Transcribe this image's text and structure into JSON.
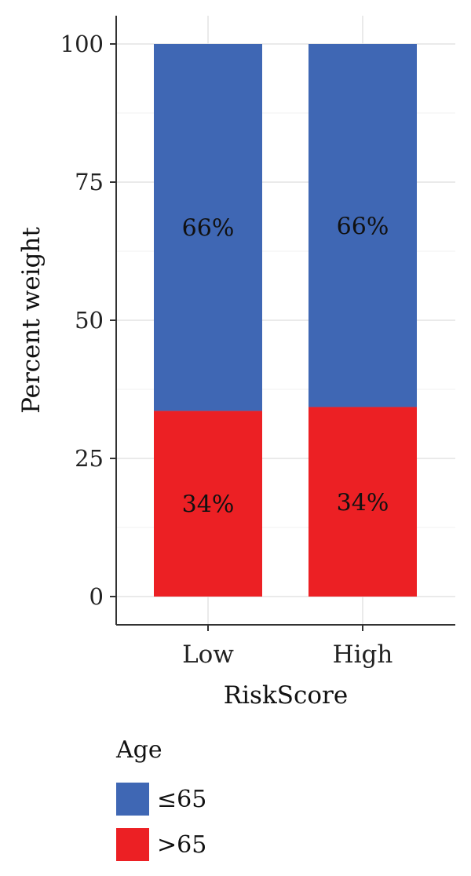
{
  "chart_data": {
    "type": "bar",
    "stacked": true,
    "xlabel": "RiskScore",
    "ylabel": "Percent weight",
    "ylim": [
      0,
      100
    ],
    "yticks": [
      0,
      25,
      50,
      75,
      100
    ],
    "categories": [
      "Low",
      "High"
    ],
    "series": [
      {
        "name": ">65",
        "color": "#ec2024",
        "values": [
          33.6,
          34.3
        ],
        "labels": [
          "34%",
          "34%"
        ]
      },
      {
        "name": "≤65",
        "color": "#3f67b4",
        "values": [
          66.4,
          65.7
        ],
        "labels": [
          "66%",
          "66%"
        ]
      }
    ],
    "grid": true,
    "legend": {
      "title": "Age",
      "position": "bottom-left",
      "items": [
        {
          "label": "≤65",
          "color": "#3f67b4"
        },
        {
          "label": ">65",
          "color": "#ec2024"
        }
      ]
    }
  }
}
